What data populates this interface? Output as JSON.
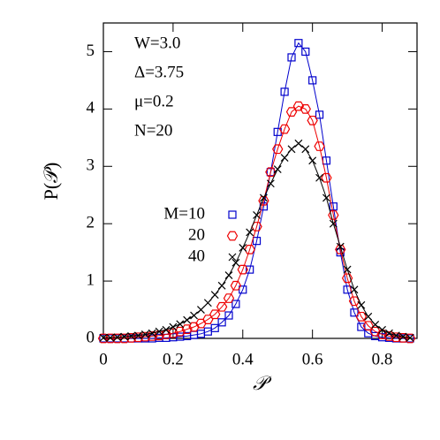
{
  "chart_data": {
    "type": "line",
    "xlabel": "𝒫",
    "ylabel": "P(𝒫)",
    "annotations": [
      "W=3.0",
      "Δ=3.75",
      "μ=0.2",
      "N=20"
    ],
    "xlim": [
      0,
      0.9
    ],
    "ylim": [
      0,
      5.5
    ],
    "xticks": [
      0,
      0.2,
      0.4,
      0.6,
      0.8
    ],
    "yticks": [
      0,
      1,
      2,
      3,
      4,
      5
    ],
    "x": [
      0,
      0.02,
      0.04,
      0.06,
      0.08,
      0.1,
      0.12,
      0.14,
      0.16,
      0.18,
      0.2,
      0.22,
      0.24,
      0.26,
      0.28,
      0.3,
      0.32,
      0.34,
      0.36,
      0.38,
      0.4,
      0.42,
      0.44,
      0.46,
      0.48,
      0.5,
      0.52,
      0.54,
      0.56,
      0.58,
      0.6,
      0.62,
      0.64,
      0.66,
      0.68,
      0.7,
      0.72,
      0.74,
      0.76,
      0.78,
      0.8,
      0.82,
      0.84,
      0.86,
      0.88
    ],
    "series": [
      {
        "name": "M=10",
        "color": "#0000cc",
        "marker": "square",
        "values": [
          0,
          0,
          0,
          0,
          0,
          0,
          0,
          0,
          0.01,
          0.01,
          0.02,
          0.03,
          0.04,
          0.06,
          0.08,
          0.12,
          0.18,
          0.28,
          0.4,
          0.6,
          0.85,
          1.2,
          1.7,
          2.3,
          2.9,
          3.6,
          4.3,
          4.9,
          5.15,
          5.0,
          4.5,
          3.9,
          3.1,
          2.3,
          1.5,
          0.85,
          0.45,
          0.2,
          0.09,
          0.04,
          0.02,
          0.01,
          0,
          0,
          0
        ]
      },
      {
        "name": "20",
        "color": "#ee0000",
        "marker": "hexagon",
        "values": [
          0,
          0,
          0,
          0,
          0.01,
          0.02,
          0.03,
          0.04,
          0.05,
          0.07,
          0.09,
          0.12,
          0.16,
          0.2,
          0.26,
          0.33,
          0.42,
          0.55,
          0.7,
          0.92,
          1.2,
          1.55,
          1.95,
          2.4,
          2.9,
          3.3,
          3.65,
          3.95,
          4.05,
          4.0,
          3.8,
          3.35,
          2.8,
          2.15,
          1.55,
          1.05,
          0.65,
          0.38,
          0.22,
          0.12,
          0.07,
          0.04,
          0.02,
          0.01,
          0
        ]
      },
      {
        "name": "40",
        "color": "#000000",
        "marker": "cross",
        "values": [
          0.01,
          0.01,
          0.02,
          0.03,
          0.04,
          0.05,
          0.07,
          0.09,
          0.12,
          0.15,
          0.2,
          0.25,
          0.32,
          0.4,
          0.5,
          0.62,
          0.76,
          0.92,
          1.1,
          1.32,
          1.58,
          1.85,
          2.15,
          2.45,
          2.7,
          2.95,
          3.15,
          3.3,
          3.4,
          3.3,
          3.1,
          2.8,
          2.45,
          2.0,
          1.6,
          1.2,
          0.85,
          0.58,
          0.38,
          0.24,
          0.15,
          0.09,
          0.05,
          0.03,
          0.01
        ]
      }
    ]
  }
}
